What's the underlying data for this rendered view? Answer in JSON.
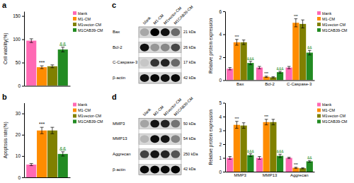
{
  "chart_data": [
    {
      "type": "bar",
      "title": "a",
      "ylabel": "Cell viability(%)",
      "categories": [
        null
      ],
      "tick_labels": "y",
      "legend": "right",
      "ylim": [
        0,
        160
      ],
      "yticks": [
        0,
        50,
        100,
        150
      ],
      "series": [
        {
          "name": "blank",
          "color": "#FF69B4",
          "values": [
            97
          ],
          "errors": [
            4
          ]
        },
        {
          "name": "M1-CM",
          "color": "#FF8C00",
          "values": [
            40
          ],
          "errors": [
            3
          ],
          "annotations": [
            {
              "text": "***"
            }
          ]
        },
        {
          "name": "M1vector-CM",
          "color": "#808000",
          "values": [
            42
          ],
          "errors": [
            3
          ]
        },
        {
          "name": "M1CAB39-CM",
          "color": "#228B22",
          "values": [
            78
          ],
          "errors": [
            5
          ],
          "annotations": [
            {
              "text": "&&",
              "color": "#228B22"
            }
          ]
        }
      ]
    },
    {
      "type": "bar",
      "title": "b",
      "ylabel": "Apoptosis rate(%)",
      "categories": [
        null
      ],
      "tick_labels": "y",
      "legend": "right",
      "ylim": [
        0,
        35
      ],
      "yticks": [
        0,
        10,
        20,
        30
      ],
      "series": [
        {
          "name": "blank",
          "color": "#FF69B4",
          "values": [
            6
          ],
          "errors": [
            0.5
          ]
        },
        {
          "name": "M1-CM",
          "color": "#FF8C00",
          "values": [
            22
          ],
          "errors": [
            1.5
          ],
          "annotations": [
            {
              "text": "***"
            }
          ]
        },
        {
          "name": "M1vector-CM",
          "color": "#808000",
          "values": [
            22
          ],
          "errors": [
            1.5
          ]
        },
        {
          "name": "M1CAB39-CM",
          "color": "#228B22",
          "values": [
            11
          ],
          "errors": [
            1.0
          ],
          "annotations": [
            {
              "text": "&&",
              "color": "#228B22"
            }
          ]
        }
      ]
    },
    {
      "type": "heatmap",
      "title": "c",
      "columns": [
        "blank",
        "M1-CM",
        "M1vector-CM",
        "M1CAB39-CM"
      ],
      "rows": [
        "Bax",
        "Bcl-2",
        "C-Caspase-3",
        "β-actin"
      ],
      "row_labels_right": [
        "21 kDa",
        "26 kDa",
        "17 kDa",
        "42 kDa"
      ],
      "values": [
        [
          0.4,
          0.9,
          0.85,
          0.6
        ],
        [
          0.85,
          0.45,
          0.5,
          0.7
        ],
        [
          0.3,
          0.75,
          0.8,
          0.6
        ],
        [
          0.85,
          0.88,
          0.85,
          0.87
        ]
      ]
    },
    {
      "type": "heatmap",
      "title": "d",
      "columns": [
        "blank",
        "M1-CM",
        "M1vector-CM",
        "M1CAB39-CM"
      ],
      "rows": [
        "MMP3",
        "MMP13",
        "Aggrecan",
        "β-actin"
      ],
      "row_labels_right": [
        "50 kDa",
        "54 kDa",
        "250 kDa",
        "42 kDa"
      ],
      "values": [
        [
          0.4,
          0.82,
          0.78,
          0.55
        ],
        [
          0.35,
          0.85,
          0.82,
          0.5
        ],
        [
          0.7,
          0.82,
          0.78,
          0.65
        ],
        [
          0.85,
          0.88,
          0.85,
          0.87
        ]
      ]
    },
    {
      "type": "bar",
      "ylabel": "Relative protein expression",
      "categories": [
        "Bax",
        "Bcl-2",
        "C-Caspase-3"
      ],
      "legend": "right",
      "ylim": [
        0,
        6
      ],
      "yticks": [
        0,
        2,
        4,
        6
      ],
      "series": [
        {
          "name": "blank",
          "color": "#FF69B4",
          "values": [
            1.0,
            1.1,
            1.1
          ],
          "errors": [
            0.1,
            0.1,
            0.1
          ]
        },
        {
          "name": "M1-CM",
          "color": "#FF8C00",
          "values": [
            3.3,
            0.3,
            5.0
          ],
          "errors": [
            0.25,
            0.05,
            0.35
          ],
          "annotations": [
            {
              "text": "***"
            },
            {
              "text": "***"
            },
            {
              "text": "***"
            }
          ]
        },
        {
          "name": "M1vector-CM",
          "color": "#808000",
          "values": [
            3.3,
            0.25,
            4.9
          ],
          "errors": [
            0.2,
            0.05,
            0.35
          ]
        },
        {
          "name": "M1CAB39-CM",
          "color": "#228B22",
          "values": [
            1.5,
            0.7,
            2.4
          ],
          "errors": [
            0.15,
            0.08,
            0.2
          ],
          "annotations": [
            {
              "text": "&&&",
              "color": "#228B22"
            },
            {
              "text": "&&&",
              "color": "#228B22"
            },
            {
              "text": "&&",
              "color": "#228B22"
            }
          ]
        }
      ]
    },
    {
      "type": "bar",
      "ylabel": "Relative protein expression",
      "categories": [
        "MMP3",
        "MMP13",
        "Aggrecan"
      ],
      "legend": "right",
      "ylim": [
        0,
        5
      ],
      "yticks": [
        0,
        1,
        2,
        3,
        4,
        5
      ],
      "series": [
        {
          "name": "blank",
          "color": "#FF69B4",
          "values": [
            1.0,
            1.0,
            1.0
          ],
          "errors": [
            0.1,
            0.1,
            0.05
          ]
        },
        {
          "name": "M1-CM",
          "color": "#FF8C00",
          "values": [
            3.4,
            3.6,
            0.28
          ],
          "errors": [
            0.25,
            0.2,
            0.04
          ],
          "annotations": [
            {
              "text": "***"
            },
            {
              "text": "***"
            },
            {
              "text": "***"
            }
          ]
        },
        {
          "name": "M1vector-CM",
          "color": "#808000",
          "values": [
            3.35,
            3.6,
            0.25
          ],
          "errors": [
            0.2,
            0.2,
            0.04
          ]
        },
        {
          "name": "M1CAB39-CM",
          "color": "#228B22",
          "values": [
            1.2,
            1.15,
            0.75
          ],
          "errors": [
            0.1,
            0.12,
            0.06
          ],
          "annotations": [
            {
              "text": "&&&",
              "color": "#228B22"
            },
            {
              "text": "&&&",
              "color": "#228B22"
            },
            {
              "text": "&&",
              "color": "#228B22"
            }
          ]
        }
      ]
    }
  ]
}
